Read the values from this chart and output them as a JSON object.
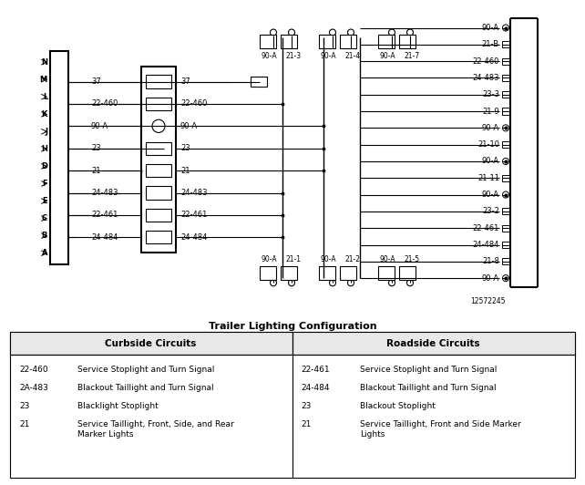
{
  "title": "Trailer Lighting Configuration",
  "bg_color": "#ffffff",
  "diagram_note": "12572245",
  "curbside_header": "Curbside Circuits",
  "roadside_header": "Roadside Circuits",
  "curbside_rows": [
    [
      "22-460",
      "Service Stoplight and Turn Signal"
    ],
    [
      "2A-483",
      "Blackout Taillight and Turn Signal"
    ],
    [
      "23",
      "Blacklight Stoplight"
    ],
    [
      "21",
      "Service Taillight, Front, Side, and Rear\nMarker Lights"
    ]
  ],
  "roadside_rows": [
    [
      "22-461",
      "Service Stoplight and Turn Signal"
    ],
    [
      "24-484",
      "Blackout Taillight and Turn Signal"
    ],
    [
      "23",
      "Blackout Stoplight"
    ],
    [
      "21",
      "Service Taillight, Front and Side Marker\nLights"
    ]
  ],
  "left_pins": [
    "N",
    "M",
    "L",
    "K",
    "J",
    "H",
    "D",
    "F",
    "E",
    "C",
    "B",
    "A"
  ],
  "mid_labels": [
    "37",
    "22-460",
    "90-A",
    "23",
    "21",
    "24-483",
    "22-461",
    "24-484"
  ],
  "right_labels": [
    "90-A",
    "21-B",
    "22-460",
    "24-483",
    "23-3",
    "21-9",
    "90-A",
    "21-10",
    "90-A",
    "21-11",
    "90-A",
    "23-2",
    "22-461",
    "24-484",
    "21-8",
    "90-A"
  ],
  "top_pairs": [
    [
      "90-A",
      "21-3"
    ],
    [
      "90-A",
      "21-4"
    ],
    [
      "90-A",
      "21-7"
    ]
  ],
  "bot_pairs": [
    [
      "90-A",
      "21-1"
    ],
    [
      "90-A",
      "21-2"
    ],
    [
      "90-A",
      "21-5"
    ]
  ]
}
